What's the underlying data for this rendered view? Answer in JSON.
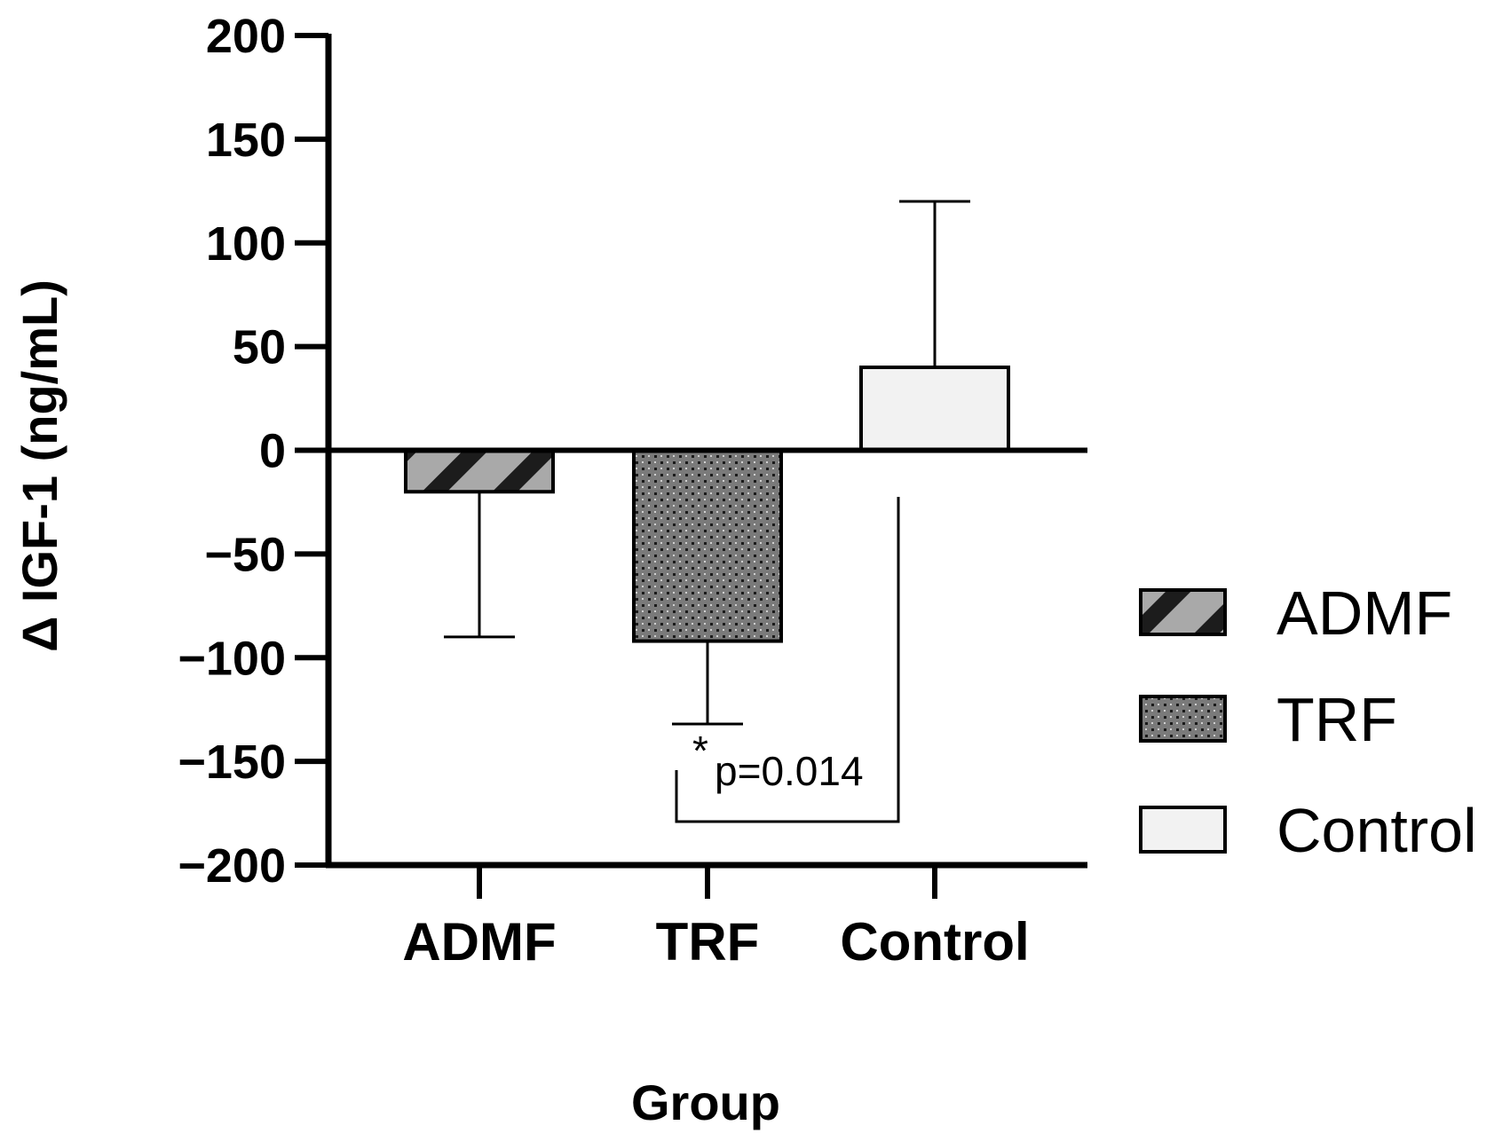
{
  "chart_data": {
    "type": "bar",
    "title": "",
    "xlabel": "Group",
    "ylabel": "Δ IGF-1 (ng/mL)",
    "ylim": [
      -200,
      200
    ],
    "yticks": [
      200,
      150,
      100,
      50,
      0,
      -50,
      -100,
      -150,
      -200
    ],
    "ytick_labels": [
      "200",
      "150",
      "100",
      "50",
      "0",
      "−50",
      "−100",
      "−150",
      "−200"
    ],
    "categories": [
      "ADMF",
      "TRF",
      "Control"
    ],
    "values": [
      -20,
      -92,
      40
    ],
    "error_bars": [
      {
        "category": "ADMF",
        "direction": "down",
        "value": -90
      },
      {
        "category": "TRF",
        "direction": "down",
        "value": -132
      },
      {
        "category": "Control",
        "direction": "up",
        "value": 120
      }
    ],
    "series_styles": [
      {
        "name": "ADMF",
        "pattern": "diagonal-stripes",
        "fill": "#a9a9a9",
        "stripe": "#1c1c1c"
      },
      {
        "name": "TRF",
        "pattern": "dotted",
        "fill": "#777777",
        "dot": "#1a1a1a"
      },
      {
        "name": "Control",
        "pattern": "solid",
        "fill": "#f2f2f2"
      }
    ],
    "legend": {
      "placement": "right",
      "entries": [
        "ADMF",
        "TRF",
        "Control"
      ]
    },
    "annotations": [
      {
        "text_star": "*",
        "text": "p=0.014",
        "between": [
          "TRF",
          "Control"
        ]
      }
    ],
    "grid": false
  }
}
